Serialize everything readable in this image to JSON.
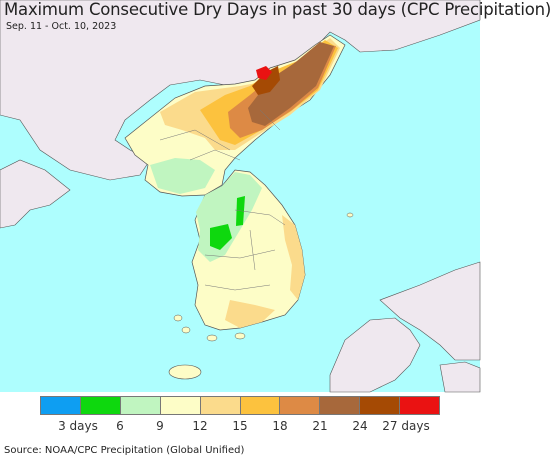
{
  "title": "Maximum Consecutive Dry Days in past 30 days (CPC Precipitation)",
  "subtitle": "Sep. 11 - Oct. 10, 2023",
  "source": "Source: NOAA/CPC Precipitation (Global Unified)",
  "colors": {
    "ocean": "#aefefe",
    "land_outside": "#efe8ef",
    "border": "#555555"
  },
  "legend": {
    "bins": [
      "#0e9ef2",
      "#0ed80e",
      "#c0f5c0",
      "#fdfdc7",
      "#fbdb8c",
      "#fcc23e",
      "#dd8a45",
      "#a7683b",
      "#a54a04",
      "#ea1212"
    ],
    "labels": [
      "3 days",
      "6",
      "9",
      "12",
      "15",
      "18",
      "21",
      "24",
      "27 days"
    ]
  }
}
